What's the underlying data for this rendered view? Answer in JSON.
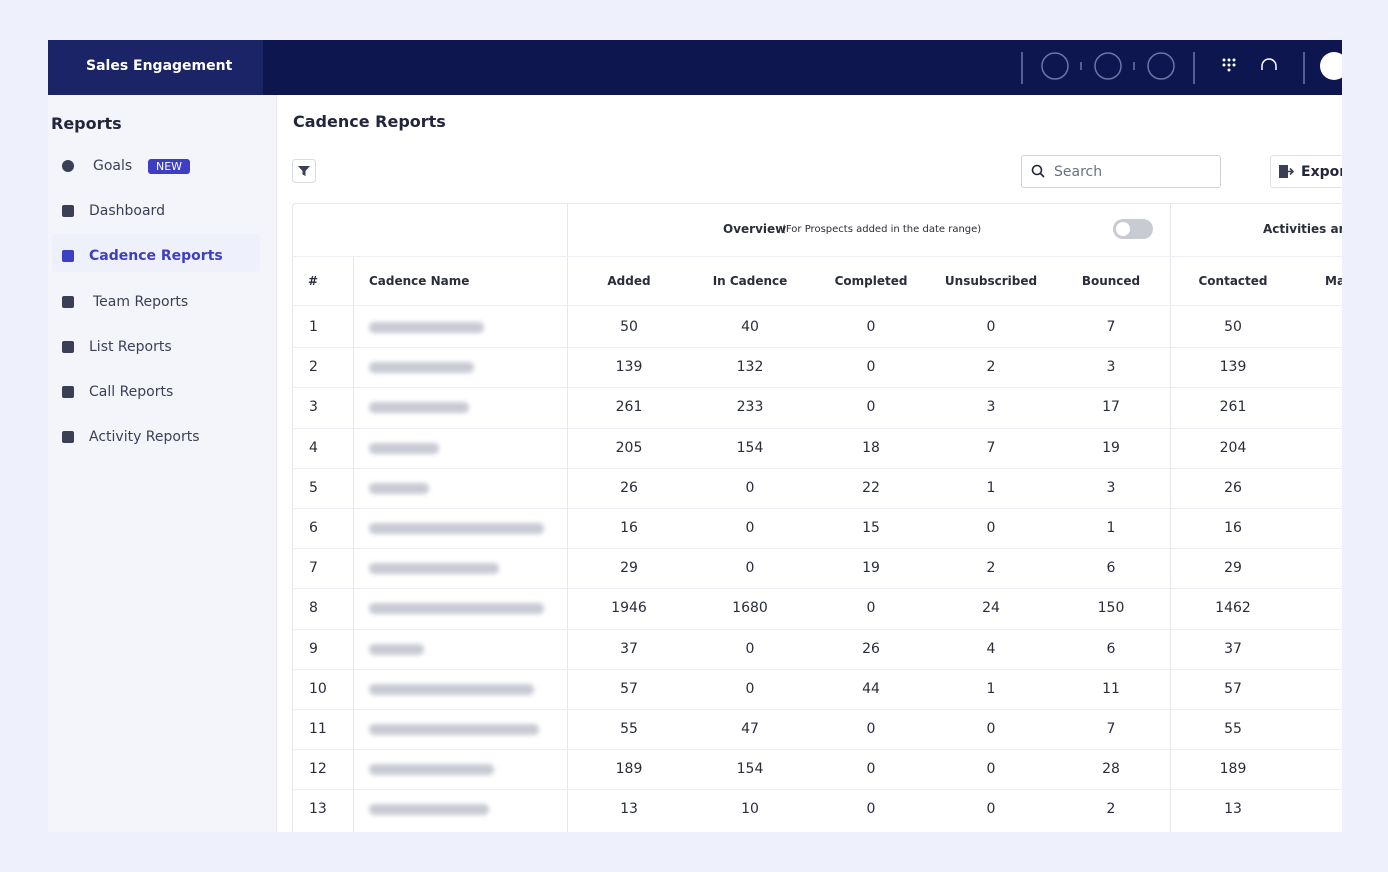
{
  "header": {
    "brand": "Sales Engagement"
  },
  "sidebar": {
    "title": "Reports",
    "items": [
      {
        "label": "Goals",
        "badge": "NEW"
      },
      {
        "label": "Dashboard"
      },
      {
        "label": "Cadence Reports"
      },
      {
        "label": "Team Reports"
      },
      {
        "label": "List Reports"
      },
      {
        "label": "Call Reports"
      },
      {
        "label": "Activity Reports"
      }
    ]
  },
  "page": {
    "title": "Cadence Reports",
    "search_placeholder": "Search",
    "export": "Expor"
  },
  "table": {
    "group_headers": {
      "overview": "Overview",
      "overview_note": "(For Prospects added in the date range)",
      "activities": "Activities and"
    },
    "columns": [
      "#",
      "Cadence Name",
      "Added",
      "In Cadence",
      "Completed",
      "Unsubscribed",
      "Bounced",
      "Contacted",
      "Ma"
    ],
    "rows": [
      [
        1,
        50,
        40,
        0,
        0,
        7,
        50
      ],
      [
        2,
        139,
        132,
        0,
        2,
        3,
        139
      ],
      [
        3,
        261,
        233,
        0,
        3,
        17,
        261
      ],
      [
        4,
        205,
        154,
        18,
        7,
        19,
        204
      ],
      [
        5,
        26,
        0,
        22,
        1,
        3,
        26
      ],
      [
        6,
        16,
        0,
        15,
        0,
        1,
        16
      ],
      [
        7,
        29,
        0,
        19,
        2,
        6,
        29
      ],
      [
        8,
        1946,
        1680,
        0,
        24,
        150,
        1462
      ],
      [
        9,
        37,
        0,
        26,
        4,
        6,
        37
      ],
      [
        10,
        57,
        0,
        44,
        1,
        11,
        57
      ],
      [
        11,
        55,
        47,
        0,
        0,
        7,
        55
      ],
      [
        12,
        189,
        154,
        0,
        0,
        28,
        189
      ],
      [
        13,
        13,
        10,
        0,
        0,
        2,
        13
      ]
    ]
  }
}
